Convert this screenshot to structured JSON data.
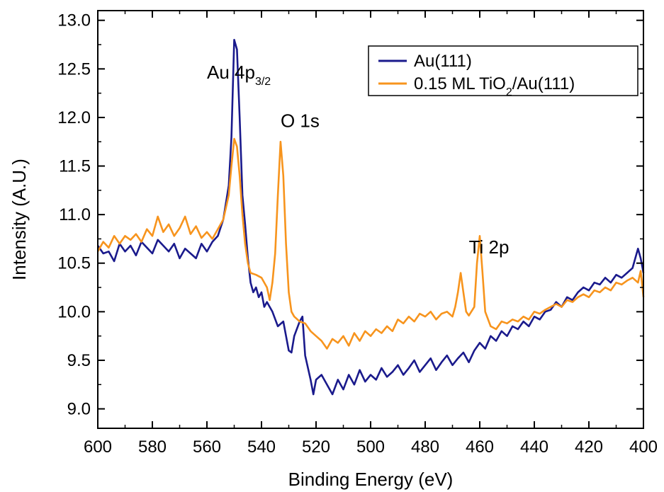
{
  "chart_data": {
    "type": "line",
    "title": "",
    "xlabel": "Binding Energy (eV)",
    "ylabel": "Intensity (A.U.)",
    "xlim": [
      600,
      400
    ],
    "ylim": [
      8.8,
      13.1
    ],
    "x_reversed": true,
    "grid": false,
    "legend_position": "top-right",
    "x_ticks": [
      "600",
      "580",
      "560",
      "540",
      "520",
      "500",
      "480",
      "460",
      "440",
      "420",
      "400"
    ],
    "y_ticks": [
      "9.0",
      "9.5",
      "10.0",
      "10.5",
      "11.0",
      "11.5",
      "12.0",
      "12.5",
      "13.0"
    ],
    "annotations": [
      {
        "id": "au4p",
        "main": "Au 4p",
        "sub": "3/2",
        "x": 560,
        "y": 12.4
      },
      {
        "id": "o1s",
        "main": "O 1s",
        "sub": "",
        "x": 533,
        "y": 11.9
      },
      {
        "id": "ti2p",
        "main": "Ti 2p",
        "sub": "",
        "x": 464,
        "y": 10.6
      }
    ],
    "series": [
      {
        "name": "Au(111)",
        "color": "#1a1a8c",
        "points": [
          [
            600,
            10.68
          ],
          [
            598,
            10.6
          ],
          [
            596,
            10.62
          ],
          [
            594,
            10.52
          ],
          [
            592,
            10.7
          ],
          [
            590,
            10.62
          ],
          [
            588,
            10.68
          ],
          [
            586,
            10.58
          ],
          [
            584,
            10.72
          ],
          [
            582,
            10.66
          ],
          [
            580,
            10.6
          ],
          [
            578,
            10.74
          ],
          [
            576,
            10.68
          ],
          [
            574,
            10.62
          ],
          [
            572,
            10.7
          ],
          [
            570,
            10.55
          ],
          [
            568,
            10.65
          ],
          [
            566,
            10.6
          ],
          [
            564,
            10.55
          ],
          [
            562,
            10.7
          ],
          [
            560,
            10.62
          ],
          [
            558,
            10.72
          ],
          [
            556,
            10.78
          ],
          [
            554,
            10.95
          ],
          [
            552,
            11.3
          ],
          [
            551,
            11.8
          ],
          [
            550,
            12.8
          ],
          [
            549,
            12.7
          ],
          [
            548,
            12.0
          ],
          [
            547,
            11.2
          ],
          [
            546,
            10.9
          ],
          [
            545,
            10.55
          ],
          [
            544,
            10.3
          ],
          [
            543,
            10.2
          ],
          [
            542,
            10.25
          ],
          [
            541,
            10.15
          ],
          [
            540,
            10.2
          ],
          [
            539,
            10.05
          ],
          [
            538,
            10.1
          ],
          [
            536,
            10.0
          ],
          [
            534,
            9.85
          ],
          [
            532,
            9.9
          ],
          [
            530,
            9.6
          ],
          [
            529,
            9.58
          ],
          [
            528,
            9.75
          ],
          [
            526,
            9.9
          ],
          [
            525,
            9.95
          ],
          [
            524,
            9.55
          ],
          [
            522,
            9.3
          ],
          [
            521,
            9.15
          ],
          [
            520,
            9.3
          ],
          [
            518,
            9.35
          ],
          [
            516,
            9.25
          ],
          [
            514,
            9.15
          ],
          [
            512,
            9.3
          ],
          [
            510,
            9.2
          ],
          [
            508,
            9.35
          ],
          [
            506,
            9.25
          ],
          [
            504,
            9.4
          ],
          [
            502,
            9.28
          ],
          [
            500,
            9.35
          ],
          [
            498,
            9.3
          ],
          [
            496,
            9.42
          ],
          [
            494,
            9.33
          ],
          [
            492,
            9.38
          ],
          [
            490,
            9.45
          ],
          [
            488,
            9.35
          ],
          [
            486,
            9.42
          ],
          [
            484,
            9.5
          ],
          [
            482,
            9.38
          ],
          [
            480,
            9.45
          ],
          [
            478,
            9.52
          ],
          [
            476,
            9.4
          ],
          [
            474,
            9.48
          ],
          [
            472,
            9.55
          ],
          [
            470,
            9.45
          ],
          [
            468,
            9.52
          ],
          [
            466,
            9.58
          ],
          [
            464,
            9.48
          ],
          [
            462,
            9.6
          ],
          [
            460,
            9.68
          ],
          [
            458,
            9.62
          ],
          [
            456,
            9.75
          ],
          [
            454,
            9.7
          ],
          [
            452,
            9.8
          ],
          [
            450,
            9.75
          ],
          [
            448,
            9.85
          ],
          [
            446,
            9.82
          ],
          [
            444,
            9.9
          ],
          [
            442,
            9.85
          ],
          [
            440,
            9.95
          ],
          [
            438,
            9.92
          ],
          [
            436,
            10.0
          ],
          [
            434,
            10.02
          ],
          [
            432,
            10.1
          ],
          [
            430,
            10.05
          ],
          [
            428,
            10.15
          ],
          [
            426,
            10.12
          ],
          [
            424,
            10.2
          ],
          [
            422,
            10.25
          ],
          [
            420,
            10.22
          ],
          [
            418,
            10.3
          ],
          [
            416,
            10.28
          ],
          [
            414,
            10.35
          ],
          [
            412,
            10.3
          ],
          [
            410,
            10.38
          ],
          [
            408,
            10.35
          ],
          [
            406,
            10.4
          ],
          [
            404,
            10.45
          ],
          [
            402,
            10.65
          ],
          [
            401,
            10.55
          ],
          [
            400,
            10.4
          ]
        ]
      },
      {
        "name": "0.15 ML TiO<sub>2</sub>/Au(111)",
        "color": "#f7941d",
        "points": [
          [
            600,
            10.62
          ],
          [
            598,
            10.72
          ],
          [
            596,
            10.66
          ],
          [
            594,
            10.78
          ],
          [
            592,
            10.7
          ],
          [
            590,
            10.78
          ],
          [
            588,
            10.74
          ],
          [
            586,
            10.8
          ],
          [
            584,
            10.72
          ],
          [
            582,
            10.85
          ],
          [
            580,
            10.78
          ],
          [
            578,
            10.98
          ],
          [
            576,
            10.82
          ],
          [
            574,
            10.9
          ],
          [
            572,
            10.78
          ],
          [
            570,
            10.86
          ],
          [
            568,
            10.98
          ],
          [
            566,
            10.8
          ],
          [
            564,
            10.88
          ],
          [
            562,
            10.76
          ],
          [
            560,
            10.82
          ],
          [
            558,
            10.75
          ],
          [
            556,
            10.85
          ],
          [
            554,
            10.95
          ],
          [
            552,
            11.2
          ],
          [
            551,
            11.5
          ],
          [
            550,
            11.78
          ],
          [
            549,
            11.7
          ],
          [
            548,
            11.4
          ],
          [
            547,
            11.0
          ],
          [
            546,
            10.7
          ],
          [
            545,
            10.5
          ],
          [
            544,
            10.4
          ],
          [
            542,
            10.38
          ],
          [
            540,
            10.35
          ],
          [
            538,
            10.25
          ],
          [
            537,
            10.12
          ],
          [
            536,
            10.3
          ],
          [
            535,
            10.6
          ],
          [
            534,
            11.2
          ],
          [
            533,
            11.75
          ],
          [
            532,
            11.4
          ],
          [
            531,
            10.7
          ],
          [
            530,
            10.2
          ],
          [
            529,
            10.0
          ],
          [
            528,
            9.95
          ],
          [
            526,
            9.9
          ],
          [
            524,
            9.88
          ],
          [
            522,
            9.8
          ],
          [
            520,
            9.75
          ],
          [
            518,
            9.7
          ],
          [
            516,
            9.62
          ],
          [
            514,
            9.72
          ],
          [
            512,
            9.68
          ],
          [
            510,
            9.75
          ],
          [
            508,
            9.65
          ],
          [
            506,
            9.78
          ],
          [
            504,
            9.7
          ],
          [
            502,
            9.8
          ],
          [
            500,
            9.75
          ],
          [
            498,
            9.82
          ],
          [
            496,
            9.78
          ],
          [
            494,
            9.85
          ],
          [
            492,
            9.8
          ],
          [
            490,
            9.92
          ],
          [
            488,
            9.88
          ],
          [
            486,
            9.95
          ],
          [
            484,
            9.9
          ],
          [
            482,
            9.98
          ],
          [
            480,
            9.95
          ],
          [
            478,
            10.0
          ],
          [
            476,
            9.92
          ],
          [
            474,
            9.98
          ],
          [
            472,
            10.0
          ],
          [
            470,
            9.95
          ],
          [
            469,
            10.05
          ],
          [
            468,
            10.2
          ],
          [
            467,
            10.4
          ],
          [
            466,
            10.2
          ],
          [
            465,
            10.0
          ],
          [
            464,
            9.96
          ],
          [
            462,
            10.05
          ],
          [
            461,
            10.5
          ],
          [
            460,
            10.78
          ],
          [
            459,
            10.4
          ],
          [
            458,
            10.0
          ],
          [
            456,
            9.85
          ],
          [
            454,
            9.82
          ],
          [
            452,
            9.9
          ],
          [
            450,
            9.88
          ],
          [
            448,
            9.92
          ],
          [
            446,
            9.9
          ],
          [
            444,
            9.95
          ],
          [
            442,
            9.92
          ],
          [
            440,
            10.0
          ],
          [
            438,
            9.98
          ],
          [
            436,
            10.02
          ],
          [
            434,
            10.05
          ],
          [
            432,
            10.08
          ],
          [
            430,
            10.05
          ],
          [
            428,
            10.12
          ],
          [
            426,
            10.1
          ],
          [
            424,
            10.15
          ],
          [
            422,
            10.18
          ],
          [
            420,
            10.15
          ],
          [
            418,
            10.22
          ],
          [
            416,
            10.2
          ],
          [
            414,
            10.25
          ],
          [
            412,
            10.22
          ],
          [
            410,
            10.3
          ],
          [
            408,
            10.28
          ],
          [
            406,
            10.32
          ],
          [
            404,
            10.35
          ],
          [
            402,
            10.3
          ],
          [
            401,
            10.42
          ],
          [
            400,
            10.15
          ]
        ]
      }
    ]
  }
}
